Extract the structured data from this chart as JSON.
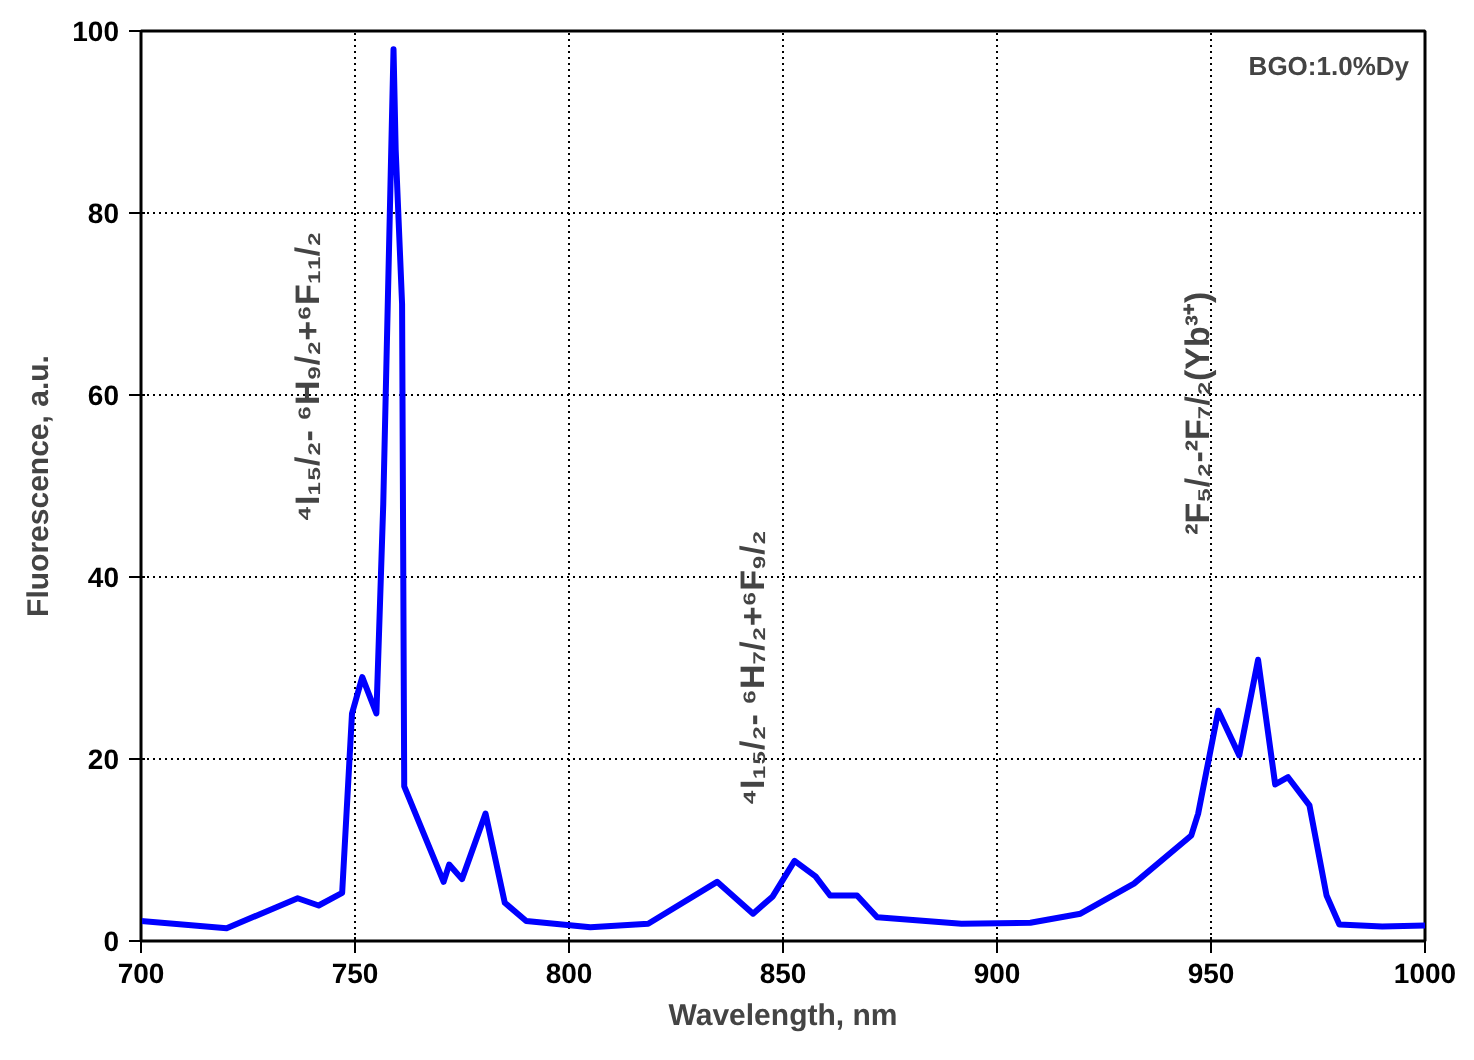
{
  "chart_data": {
    "type": "line",
    "xlabel": "Wavelength, nm",
    "ylabel": "Fluorescence, a.u.",
    "xlim": [
      700,
      1000
    ],
    "xticks": [
      700,
      750,
      800,
      850,
      900,
      950,
      1000
    ],
    "ylim": [
      0,
      100
    ],
    "yticks": [
      0,
      20,
      40,
      60,
      80,
      100
    ],
    "grid": true,
    "marker": "none",
    "line_style": "solid",
    "series": [
      {
        "color": "#0000ff",
        "x": [
          700,
          720,
          736.6,
          741.5,
          747,
          749.3,
          751.7,
          755,
          756.6,
          759,
          759.5,
          761,
          761.5,
          770.7,
          772,
          775,
          780.5,
          785,
          790,
          805,
          818.5,
          834.6,
          843,
          847.6,
          852.7,
          857.6,
          861,
          867.3,
          872,
          891.7,
          907.8,
          919.5,
          932,
          945.4,
          947,
          951.7,
          956.6,
          961,
          965,
          968,
          973,
          977,
          980,
          990,
          1000
        ],
        "values": [
          2.2,
          1.4,
          4.7,
          3.9,
          5.3,
          25,
          29,
          25,
          48,
          98,
          87,
          70,
          17,
          6.5,
          8.4,
          6.8,
          14,
          4.2,
          2.2,
          1.5,
          1.9,
          6.5,
          3,
          4.9,
          8.8,
          7.1,
          5,
          5,
          2.6,
          1.9,
          2,
          3,
          6.3,
          11.6,
          14,
          25.3,
          20.4,
          30.9,
          17.2,
          18,
          14.9,
          5,
          1.8,
          1.6,
          1.7
        ]
      }
    ],
    "annotations": [
      "⁴I₁₅/₂- ⁶H₉/₂+⁶F₁₁/₂",
      "⁴I₁₅/₂- ⁶H₇/₂+⁶F₉/₂",
      "²F₅/₂-²F₇/₂(Yb³⁺)",
      "BGO:1.0%Dy"
    ]
  }
}
